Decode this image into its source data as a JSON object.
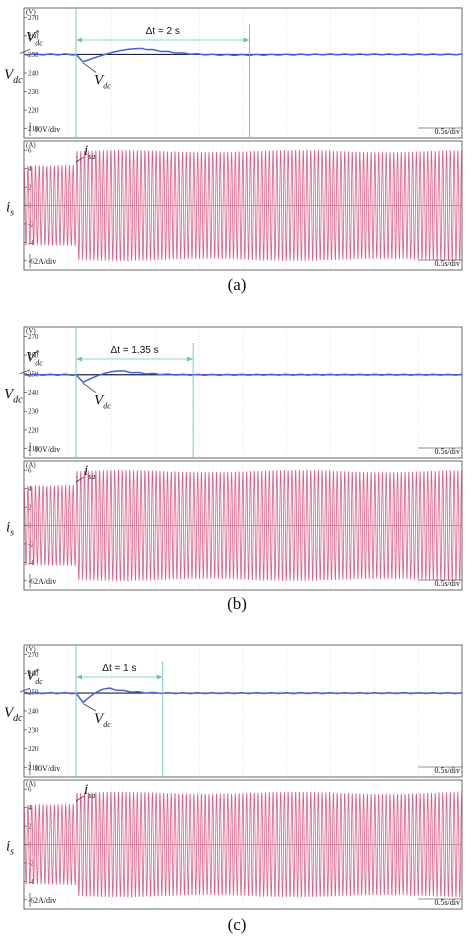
{
  "colors": {
    "reference": "#1a2340",
    "measured": "#4a5fd6",
    "current": "#d2527a",
    "marker": "#6fc2c0",
    "grid": "#b8b8b8"
  },
  "chart_data": [
    {
      "caption": "(a)",
      "dt_label": "Δt = 2 s",
      "step_time": 0.0,
      "settle_time": 2.0,
      "x_range": [
        -0.6,
        4.45
      ],
      "voltage": {
        "type": "line",
        "unit": "(V)",
        "y_label": "V",
        "y_label_sub": "dc",
        "ylim": [
          205,
          275
        ],
        "ticks": [
          210,
          220,
          230,
          240,
          250,
          260,
          270
        ],
        "ref_label": "V",
        "ref_label_sub": "dc",
        "ref_label_sup": "*",
        "meas_label": "V",
        "meas_label_sub": "dc",
        "scale_label": "10V/div",
        "time_scale": "0.5s/div",
        "reference_value": 250,
        "dip_value": 246,
        "peak_value": 253.2
      },
      "current": {
        "type": "line",
        "unit": "(A)",
        "y_label": "i",
        "y_label_sub": "s",
        "ylim": [
          -7,
          7
        ],
        "ticks": [
          6,
          4,
          2,
          0,
          -2,
          -4,
          -6
        ],
        "trace_label": "i",
        "trace_label_sub": "sa",
        "scale_label": "2A/div",
        "time_scale": "0.5s/div",
        "amplitude_before": 4.4,
        "amplitude_after": 5.9
      }
    },
    {
      "caption": "(b)",
      "dt_label": "Δt = 1.35 s",
      "step_time": 0.0,
      "settle_time": 1.35,
      "x_range": [
        -0.6,
        4.45
      ],
      "voltage": {
        "type": "line",
        "unit": "(V)",
        "y_label": "V",
        "y_label_sub": "dc",
        "ylim": [
          205,
          275
        ],
        "ticks": [
          210,
          220,
          230,
          240,
          250,
          260,
          270
        ],
        "ref_label": "V",
        "ref_label_sub": "dc",
        "ref_label_sup": "*",
        "meas_label": "V",
        "meas_label_sub": "dc",
        "scale_label": "10V/div",
        "time_scale": "0.5s/div",
        "reference_value": 249.5,
        "dip_value": 245.5,
        "peak_value": 251.5
      },
      "current": {
        "type": "line",
        "unit": "(A)",
        "y_label": "i",
        "y_label_sub": "s",
        "ylim": [
          -7,
          7
        ],
        "ticks": [
          6,
          4,
          2,
          0,
          -2,
          -4,
          -6
        ],
        "trace_label": "i",
        "trace_label_sub": "sa",
        "scale_label": "2A/div",
        "time_scale": "0.5s/div",
        "amplitude_before": 4.4,
        "amplitude_after": 5.9
      }
    },
    {
      "caption": "(c)",
      "dt_label": "Δt = 1 s",
      "step_time": 0.0,
      "settle_time": 1.0,
      "x_range": [
        -0.6,
        4.45
      ],
      "voltage": {
        "type": "line",
        "unit": "(V)",
        "y_label": "V",
        "y_label_sub": "dc",
        "ylim": [
          205,
          275
        ],
        "ticks": [
          210,
          220,
          230,
          240,
          250,
          260,
          270
        ],
        "ref_label": "V",
        "ref_label_sub": "dc",
        "ref_label_sup": "*",
        "meas_label": "V",
        "meas_label_sub": "dc",
        "scale_label": "10V/div",
        "time_scale": "0.5s/div",
        "reference_value": 249.5,
        "dip_value": 244.5,
        "peak_value": 252
      },
      "current": {
        "type": "line",
        "unit": "(A)",
        "y_label": "i",
        "y_label_sub": "s",
        "ylim": [
          -7,
          7
        ],
        "ticks": [
          6,
          4,
          2,
          0,
          -2,
          -4,
          -6
        ],
        "trace_label": "i",
        "trace_label_sub": "sa",
        "scale_label": "2A/div",
        "time_scale": "0.5s/div",
        "amplitude_before": 4.4,
        "amplitude_after": 5.6
      }
    }
  ]
}
